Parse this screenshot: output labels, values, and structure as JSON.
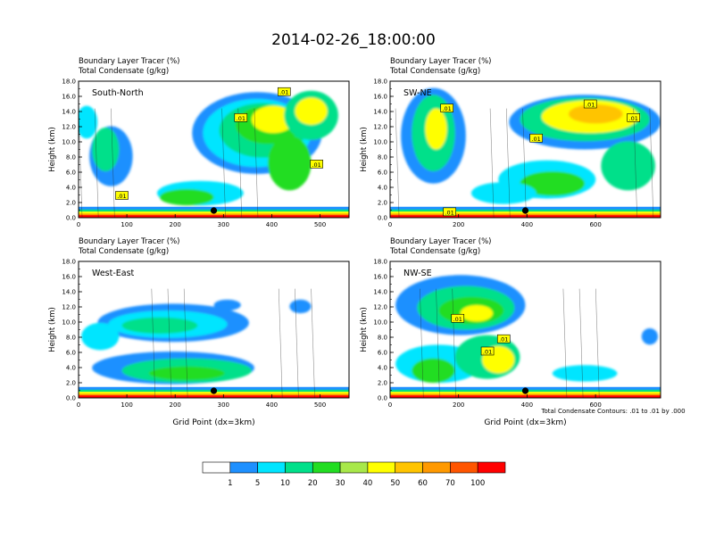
{
  "title": "2014-02-26_18:00:00",
  "footnote": "Total Condensate Contours: .01 to .01 by .000",
  "colorbar": {
    "labels": [
      "1",
      "5",
      "10",
      "20",
      "30",
      "40",
      "50",
      "60",
      "70",
      "100"
    ],
    "colors": [
      "#ffffff",
      "#1e90ff",
      "#00e5ff",
      "#00e08a",
      "#22dd22",
      "#a8e84a",
      "#ffff00",
      "#ffc400",
      "#ff9900",
      "#ff5500",
      "#ff0000"
    ]
  },
  "chart_data": [
    {
      "type": "heatmap",
      "label": "South-North",
      "header": [
        "Boundary Layer Tracer    (%)",
        "Total Condensate    (g/kg)"
      ],
      "ylabel": "Height (km)",
      "xlabel": "",
      "xlim": [
        0,
        560
      ],
      "xticks": [
        "0",
        "100",
        "200",
        "300",
        "400",
        "500"
      ],
      "ylim": [
        0,
        18
      ],
      "yticks": [
        "0.0",
        "2.0",
        "4.0",
        "6.0",
        "8.0",
        "10.0",
        "12.0",
        "14.0",
        "16.0",
        "18.0"
      ],
      "marker_x": 280,
      "contour_labels": [
        ".01",
        ".01",
        ".01",
        ".01"
      ]
    },
    {
      "type": "heatmap",
      "label": "SW-NE",
      "header": [
        "Boundary Layer Tracer    (%)",
        "Total Condensate    (g/kg)"
      ],
      "ylabel": "Height (km)",
      "xlabel": "",
      "xlim": [
        0,
        790
      ],
      "xticks": [
        "0",
        "200",
        "400",
        "600"
      ],
      "ylim": [
        0,
        18
      ],
      "yticks": [
        "0.0",
        "2.0",
        "4.0",
        "6.0",
        "8.0",
        "10.0",
        "12.0",
        "14.0",
        "16.0",
        "18.0"
      ],
      "marker_x": 395,
      "contour_labels": [
        ".01",
        ".01",
        ".01",
        ".01",
        ".01"
      ]
    },
    {
      "type": "heatmap",
      "label": "West-East",
      "header": [
        "Boundary Layer Tracer    (%)",
        "Total Condensate    (g/kg)"
      ],
      "ylabel": "Height (km)",
      "xlabel": "Grid Point (dx=3km)",
      "xlim": [
        0,
        560
      ],
      "xticks": [
        "0",
        "100",
        "200",
        "300",
        "400",
        "500"
      ],
      "ylim": [
        0,
        18
      ],
      "yticks": [
        "0.0",
        "2.0",
        "4.0",
        "6.0",
        "8.0",
        "10.0",
        "12.0",
        "14.0",
        "16.0",
        "18.0"
      ],
      "marker_x": 280,
      "contour_labels": []
    },
    {
      "type": "heatmap",
      "label": "NW-SE",
      "header": [
        "Boundary Layer Tracer    (%)",
        "Total Condensate    (g/kg)"
      ],
      "ylabel": "Height (km)",
      "xlabel": "Grid Point (dx=3km)",
      "xlim": [
        0,
        790
      ],
      "xticks": [
        "0",
        "200",
        "400",
        "600"
      ],
      "ylim": [
        0,
        18
      ],
      "yticks": [
        "0.0",
        "2.0",
        "4.0",
        "6.0",
        "8.0",
        "10.0",
        "12.0",
        "14.0",
        "16.0",
        "18.0"
      ],
      "marker_x": 395,
      "contour_labels": [
        ".01",
        ".01",
        ".01"
      ]
    }
  ]
}
